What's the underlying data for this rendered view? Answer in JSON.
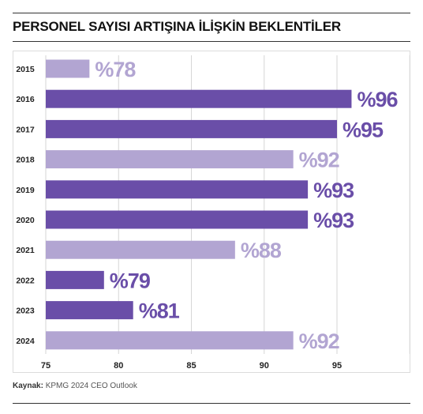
{
  "title": "PERSONEL SAYISI ARTIŞINA İLİŞKİN BEKLENTİLER",
  "source": {
    "label": "Kaynak:",
    "text": "KPMG 2024 CEO Outlook"
  },
  "colors": {
    "dark": "#6a4ea8",
    "light": "#b2a5d2",
    "grid": "#d6d6d6",
    "axis_text": "#222222"
  },
  "chart_data": {
    "type": "bar",
    "orientation": "horizontal",
    "categories": [
      "2015",
      "2016",
      "2017",
      "2018",
      "2019",
      "2020",
      "2021",
      "2022",
      "2023",
      "2024"
    ],
    "values": [
      78,
      96,
      95,
      92,
      93,
      93,
      88,
      79,
      81,
      92
    ],
    "labels": [
      "%78",
      "%96",
      "%95",
      "%92",
      "%93",
      "%93",
      "%88",
      "%79",
      "%81",
      "%92"
    ],
    "shades": [
      "light",
      "dark",
      "dark",
      "light",
      "dark",
      "dark",
      "light",
      "dark",
      "dark",
      "light"
    ],
    "xlim": [
      75,
      100
    ],
    "xticks": [
      "75",
      "80",
      "85",
      "90",
      "95"
    ],
    "grid": true,
    "title": "PERSONEL SAYISI ARTIŞINA İLİŞKİN BEKLENTİLER",
    "xlabel": "",
    "ylabel": ""
  }
}
